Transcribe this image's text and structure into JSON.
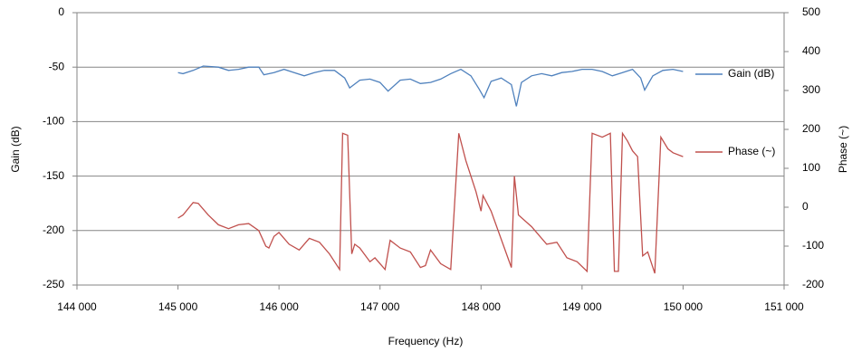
{
  "chart_data": {
    "type": "line",
    "xlabel": "Frequency (Hz)",
    "ylabel": "Gain (dB)",
    "y2label": "Phase (~)",
    "xlim": [
      144000,
      151000
    ],
    "xticks": [
      {
        "value": 144000,
        "label": "144 000"
      },
      {
        "value": 145000,
        "label": "145 000"
      },
      {
        "value": 146000,
        "label": "146 000"
      },
      {
        "value": 147000,
        "label": "147 000"
      },
      {
        "value": 148000,
        "label": "148 000"
      },
      {
        "value": 149000,
        "label": "149 000"
      },
      {
        "value": 150000,
        "label": "150 000"
      },
      {
        "value": 151000,
        "label": "151 000"
      }
    ],
    "ylim": [
      -250,
      0
    ],
    "yticks": [
      0,
      -50,
      -100,
      -150,
      -200,
      -250
    ],
    "y2lim": [
      -200,
      500
    ],
    "y2ticks": [
      500,
      400,
      300,
      200,
      100,
      0,
      -100,
      -200
    ],
    "grid": true,
    "series": [
      {
        "name": "Gain (dB)",
        "color": "#4f81bd",
        "x": [
          145000,
          145050,
          145150,
          145250,
          145400,
          145500,
          145600,
          145700,
          145800,
          145850,
          145950,
          146050,
          146150,
          146250,
          146350,
          146450,
          146550,
          146650,
          146700,
          146800,
          146900,
          147000,
          147080,
          147200,
          147300,
          147400,
          147500,
          147600,
          147700,
          147800,
          147900,
          147980,
          148030,
          148100,
          148200,
          148300,
          148350,
          148400,
          148500,
          148600,
          148700,
          148800,
          148900,
          149000,
          149100,
          149200,
          149300,
          149400,
          149500,
          149580,
          149620,
          149700,
          149800,
          149900,
          150000
        ],
        "values": [
          -55,
          -56,
          -53,
          -49,
          -50,
          -53,
          -52,
          -50,
          -50,
          -57,
          -55,
          -52,
          -55,
          -58,
          -55,
          -53,
          -53,
          -60,
          -69,
          -62,
          -61,
          -64,
          -72,
          -62,
          -61,
          -65,
          -64,
          -61,
          -56,
          -52,
          -58,
          -70,
          -78,
          -63,
          -60,
          -66,
          -86,
          -64,
          -58,
          -56,
          -58,
          -55,
          -54,
          -52,
          -52,
          -54,
          -58,
          -55,
          -52,
          -60,
          -71,
          -58,
          -53,
          -52,
          -54
        ]
      },
      {
        "name": "Phase (~)",
        "color": "#c0504d",
        "axis": "y2",
        "x": [
          145000,
          145050,
          145150,
          145200,
          145300,
          145400,
          145500,
          145600,
          145700,
          145800,
          145870,
          145900,
          145950,
          146000,
          146100,
          146200,
          146300,
          146400,
          146500,
          146600,
          146630,
          146680,
          146720,
          146750,
          146800,
          146900,
          146950,
          147050,
          147100,
          147200,
          147300,
          147400,
          147450,
          147500,
          147600,
          147700,
          147780,
          147850,
          147950,
          148000,
          148020,
          148100,
          148300,
          148330,
          148370,
          148500,
          148650,
          148750,
          148850,
          148950,
          149050,
          149100,
          149200,
          149280,
          149320,
          149360,
          149400,
          149450,
          149500,
          149550,
          149600,
          149650,
          149720,
          149780,
          149850,
          149900,
          150000
        ],
        "values": [
          -28,
          -20,
          12,
          10,
          -20,
          -45,
          -55,
          -45,
          -42,
          -60,
          -100,
          -105,
          -75,
          -65,
          -95,
          -110,
          -80,
          -90,
          -120,
          -160,
          190,
          185,
          -120,
          -95,
          -105,
          -140,
          -130,
          -160,
          -85,
          -105,
          -115,
          -155,
          -150,
          -110,
          -145,
          -160,
          190,
          120,
          40,
          -10,
          30,
          -10,
          -155,
          80,
          -20,
          -50,
          -95,
          -90,
          -130,
          -140,
          -165,
          190,
          180,
          190,
          -165,
          -165,
          190,
          170,
          145,
          130,
          -125,
          -115,
          -170,
          180,
          150,
          140,
          130
        ]
      }
    ]
  }
}
